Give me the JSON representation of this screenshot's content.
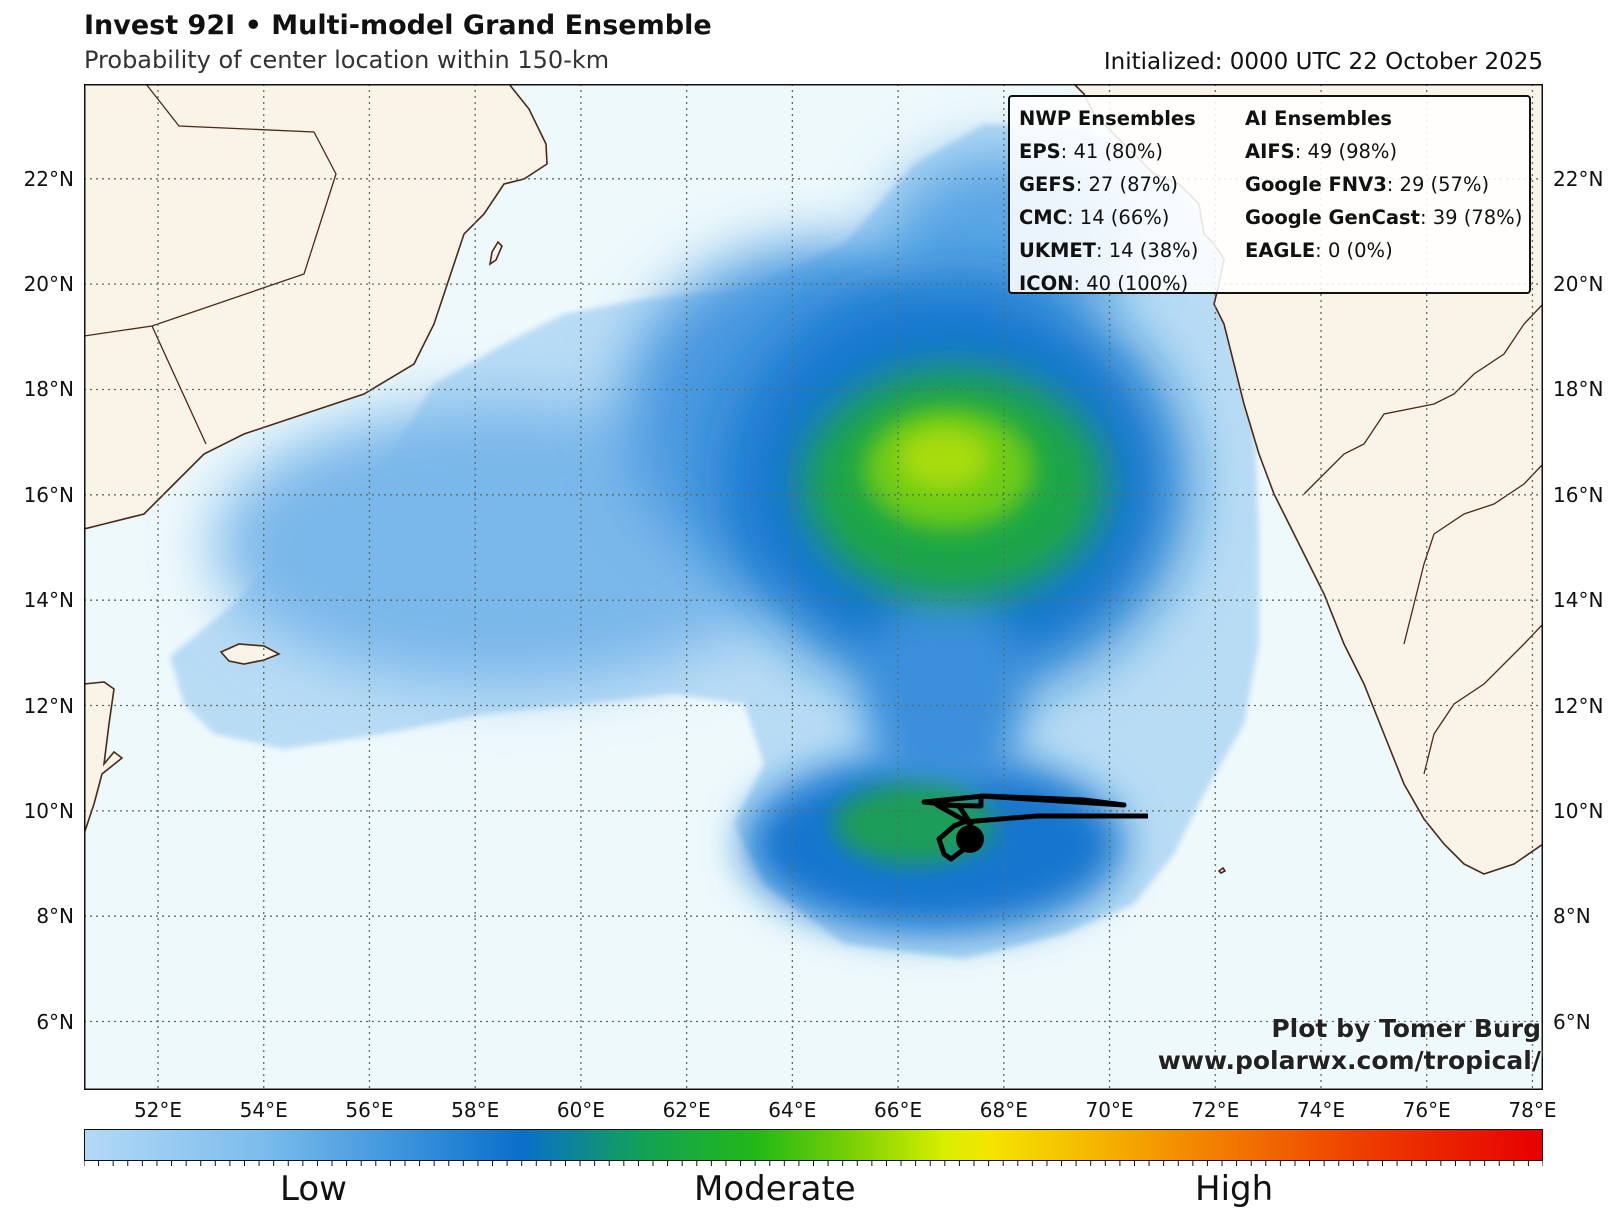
{
  "header": {
    "title": "Invest 92I • Multi-model Grand Ensemble",
    "subtitle": "Probability of center location within 150-km",
    "initialized": "Initialized: 0000 UTC 22 October 2025"
  },
  "map": {
    "lon_range": [
      50.6,
      78.2
    ],
    "lat_range": [
      4.7,
      23.8
    ],
    "lon_ticks": [
      "52°E",
      "54°E",
      "56°E",
      "58°E",
      "60°E",
      "62°E",
      "64°E",
      "66°E",
      "68°E",
      "70°E",
      "72°E",
      "74°E",
      "76°E",
      "78°E"
    ],
    "lat_ticks": [
      "6°N",
      "8°N",
      "10°N",
      "12°N",
      "14°N",
      "16°N",
      "18°N",
      "20°N",
      "22°N"
    ],
    "gridlines": true,
    "colors": {
      "ocean": "#eef9fc",
      "land": "#faf4e8",
      "coastline": "#4a2a16",
      "track": "#000000"
    },
    "storm_center_marker": "current-position-dot"
  },
  "legend": {
    "nwp_header": "NWP Ensembles",
    "ai_header": "AI Ensembles",
    "nwp": [
      {
        "name": "EPS",
        "value": ": 41 (80%)"
      },
      {
        "name": "GEFS",
        "value": ": 27 (87%)"
      },
      {
        "name": "CMC",
        "value": ": 14 (66%)"
      },
      {
        "name": "UKMET",
        "value": ": 14 (38%)"
      },
      {
        "name": "ICON",
        "value": ": 40 (100%)"
      }
    ],
    "ai": [
      {
        "name": "AIFS",
        "value": ": 49 (98%)"
      },
      {
        "name": "Google FNV3",
        "value": ": 29 (57%)"
      },
      {
        "name": "Google GenCast",
        "value": ": 39 (78%)"
      },
      {
        "name": "EAGLE",
        "value": ": 0 (0%)"
      }
    ]
  },
  "credit": {
    "line1": "Plot by Tomer Burg",
    "line2": "www.polarwx.com/tropical/"
  },
  "colorbar": {
    "labels": [
      "Low",
      "Moderate",
      "High"
    ],
    "colors": [
      "#b3d9f5",
      "#0a6fc9",
      "#22b818",
      "#f4e500",
      "#f27c00",
      "#e60000"
    ]
  }
}
